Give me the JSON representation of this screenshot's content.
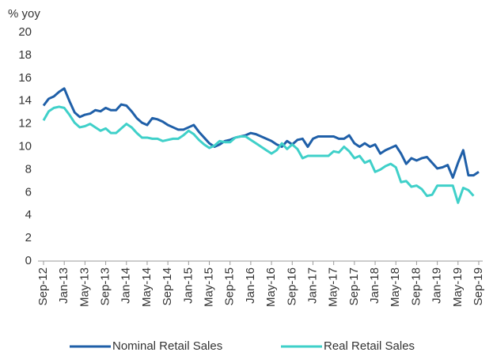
{
  "chart_data": {
    "type": "line",
    "y_label": "% yoy",
    "categories": [
      "Sep-12",
      null,
      null,
      null,
      "Jan-13",
      null,
      null,
      null,
      "May-13",
      null,
      null,
      null,
      "Sep-13",
      null,
      null,
      null,
      "Jan-14",
      null,
      null,
      null,
      "May-14",
      null,
      null,
      null,
      "Sep-14",
      null,
      null,
      null,
      "Jan-15",
      null,
      null,
      null,
      "May-15",
      null,
      null,
      null,
      "Sep-15",
      null,
      null,
      null,
      "Jan-16",
      null,
      null,
      null,
      "May-16",
      null,
      null,
      null,
      "Sep-16",
      null,
      null,
      null,
      "Jan-17",
      null,
      null,
      null,
      "May-17",
      null,
      null,
      null,
      "Sep-17",
      null,
      null,
      null,
      "Jan-18",
      null,
      null,
      null,
      "May-18",
      null,
      null,
      null,
      "Sep-18",
      null,
      null,
      null,
      "Jan-19",
      null,
      null,
      null,
      "May-19",
      null,
      null,
      null,
      "Sep-19"
    ],
    "series": [
      {
        "name": "Nominal Retail Sales",
        "color": "#1f5fa8",
        "values": [
          13.6,
          14.2,
          14.4,
          14.8,
          15.1,
          14.0,
          13.0,
          12.6,
          12.8,
          12.9,
          13.2,
          13.1,
          13.4,
          13.2,
          13.2,
          13.7,
          13.6,
          13.1,
          12.5,
          12.1,
          11.9,
          12.5,
          12.4,
          12.2,
          11.9,
          11.7,
          11.5,
          11.5,
          11.7,
          11.9,
          11.3,
          10.8,
          10.3,
          10.0,
          10.2,
          10.5,
          10.6,
          10.8,
          10.9,
          11.0,
          11.2,
          11.1,
          10.9,
          10.7,
          10.5,
          10.2,
          10.0,
          10.5,
          10.2,
          10.6,
          10.7,
          10.0,
          10.7,
          10.9,
          10.9,
          10.9,
          10.9,
          10.7,
          10.7,
          11.0,
          10.3,
          10.0,
          10.3,
          10.0,
          10.2,
          9.4,
          9.7,
          9.9,
          10.1,
          9.4,
          8.5,
          9.0,
          8.8,
          9.0,
          9.1,
          8.6,
          8.1,
          8.2,
          8.4,
          7.3,
          8.6,
          9.7,
          7.5,
          7.5,
          7.8
        ]
      },
      {
        "name": "Real Retail Sales",
        "color": "#3fd0c9",
        "values": [
          12.3,
          13.1,
          13.4,
          13.5,
          13.4,
          12.8,
          12.1,
          11.7,
          11.8,
          12.0,
          11.7,
          11.4,
          11.6,
          11.2,
          11.2,
          11.6,
          12.0,
          11.7,
          11.2,
          10.8,
          10.8,
          10.7,
          10.7,
          10.5,
          10.6,
          10.7,
          10.7,
          11.0,
          11.4,
          11.1,
          10.6,
          10.2,
          9.9,
          10.1,
          10.5,
          10.4,
          10.4,
          10.8,
          10.9,
          10.9,
          10.6,
          10.3,
          10.0,
          9.7,
          9.4,
          9.7,
          10.3,
          9.8,
          10.2,
          9.8,
          9.0,
          9.2,
          9.2,
          9.2,
          9.2,
          9.2,
          9.6,
          9.5,
          10.0,
          9.6,
          9.0,
          9.2,
          8.6,
          8.8,
          7.8,
          8.0,
          8.3,
          8.5,
          8.2,
          6.9,
          7.0,
          6.5,
          6.6,
          6.3,
          5.7,
          5.8,
          6.6,
          6.6,
          6.6,
          6.6,
          5.1,
          6.4,
          6.2,
          5.7,
          null
        ]
      }
    ],
    "ylim": [
      0,
      20
    ],
    "yticks": [
      0,
      2,
      4,
      6,
      8,
      10,
      12,
      14,
      16,
      18,
      20
    ],
    "grid": false,
    "legend": "bottom"
  }
}
